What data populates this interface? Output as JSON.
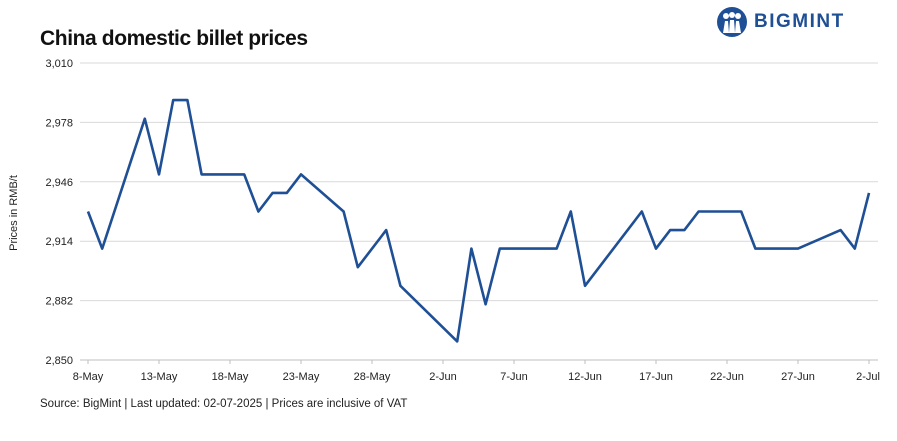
{
  "brand": {
    "name": "BIGMINT",
    "accent": "#1f4f95"
  },
  "chart_data": {
    "type": "line",
    "title": "China domestic billet prices",
    "ylabel": "Prices in RMB/t",
    "xlabel": "",
    "ylim": [
      2850,
      3010
    ],
    "yticks": [
      "3,010",
      "2,978",
      "2,946",
      "2,914",
      "2,882",
      "2,850"
    ],
    "ytick_values": [
      3010,
      2978,
      2946,
      2914,
      2882,
      2850
    ],
    "xticks": [
      "8-May",
      "13-May",
      "18-May",
      "23-May",
      "28-May",
      "2-Jun",
      "7-Jun",
      "12-Jun",
      "17-Jun",
      "22-Jun",
      "27-Jun",
      "2-Jul"
    ],
    "grid": true,
    "line_color": "#1f4f95",
    "series": [
      {
        "x": [
          "2025-05-08",
          "2025-05-09",
          "2025-05-12",
          "2025-05-13",
          "2025-05-14",
          "2025-05-15",
          "2025-05-16",
          "2025-05-19",
          "2025-05-20",
          "2025-05-21",
          "2025-05-22",
          "2025-05-23",
          "2025-05-26",
          "2025-05-27",
          "2025-05-29",
          "2025-05-30",
          "2025-06-03",
          "2025-06-04",
          "2025-06-05",
          "2025-06-06",
          "2025-06-09",
          "2025-06-10",
          "2025-06-11",
          "2025-06-12",
          "2025-06-16",
          "2025-06-17",
          "2025-06-18",
          "2025-06-19",
          "2025-06-20",
          "2025-06-23",
          "2025-06-24",
          "2025-06-27",
          "2025-06-30",
          "2025-07-01",
          "2025-07-02"
        ],
        "values": [
          2930,
          2910,
          2980,
          2950,
          2990,
          2990,
          2950,
          2950,
          2930,
          2940,
          2940,
          2950,
          2930,
          2900,
          2920,
          2890,
          2860,
          2910,
          2880,
          2910,
          2910,
          2910,
          2930,
          2890,
          2930,
          2910,
          2920,
          2920,
          2930,
          2930,
          2910,
          2910,
          2920,
          2910,
          2940
        ]
      }
    ]
  },
  "footer": {
    "source": "Source: BigMint | Last updated: 02-07-2025 | Prices are inclusive of VAT"
  }
}
